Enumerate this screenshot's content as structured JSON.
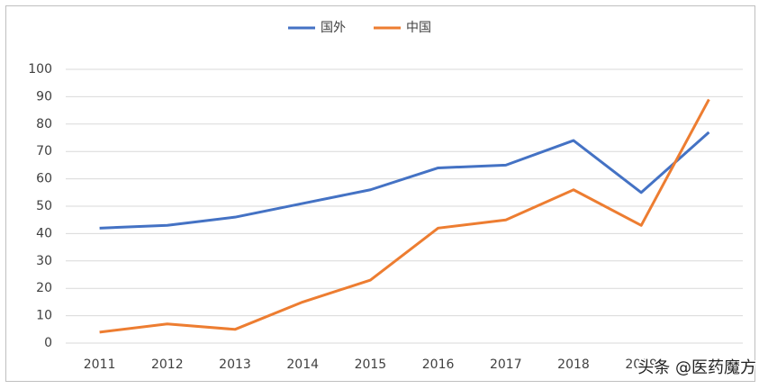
{
  "chart_data": {
    "type": "line",
    "categories": [
      "2011",
      "2012",
      "2013",
      "2014",
      "2015",
      "2016",
      "2017",
      "2018",
      "2019",
      null
    ],
    "series": [
      {
        "name": "国外",
        "color": "#4472c4",
        "values": [
          42,
          43,
          46,
          51,
          56,
          64,
          65,
          74,
          55,
          77
        ]
      },
      {
        "name": "中国",
        "color": "#ed7d31",
        "values": [
          4,
          7,
          5,
          15,
          23,
          42,
          45,
          56,
          43,
          89
        ]
      }
    ],
    "ylim": [
      0,
      100
    ],
    "yticks": [
      0,
      10,
      20,
      30,
      40,
      50,
      60,
      70,
      80,
      90,
      100
    ],
    "grid": true,
    "legend": "top",
    "watermark": "头条 @医药魔方"
  }
}
